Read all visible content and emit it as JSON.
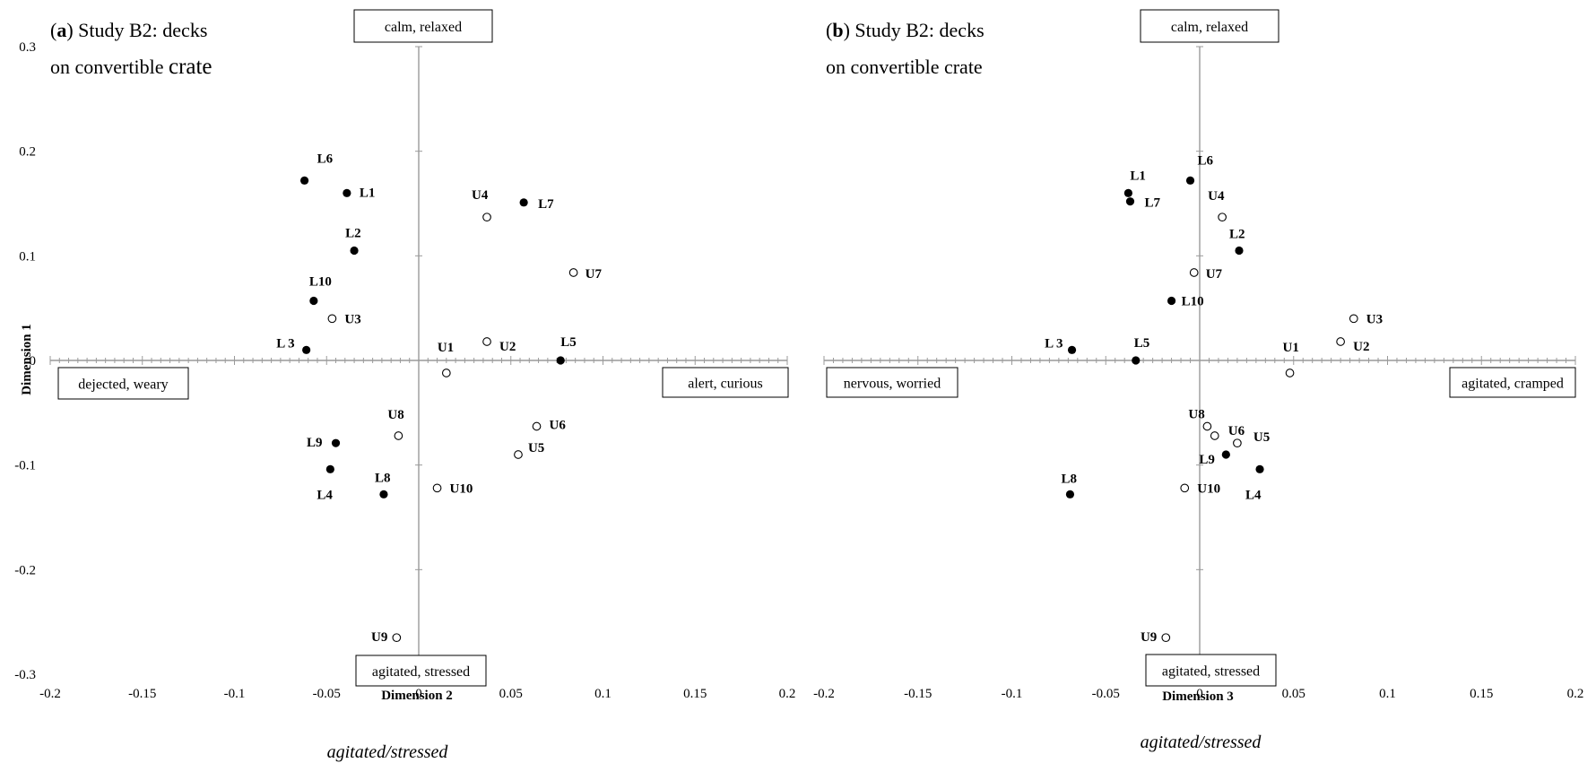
{
  "dimension1_label": "Dimension 1",
  "chart_data": [
    {
      "type": "scatter",
      "panel_letter": "a",
      "title_rest": ") Study B2: decks",
      "title_line2_prefix": "on convertible ",
      "title_line2_word": "crate",
      "xlabel": "Dimension 2",
      "caption": "agitated/stressed",
      "xlim": [
        -0.2,
        0.2
      ],
      "ylim": [
        -0.3,
        0.3
      ],
      "xticks": [
        "-0.2",
        "-0.15",
        "-0.1",
        "-0.05",
        "0",
        "0.05",
        "0.1",
        "0.15",
        "0.2"
      ],
      "yticks": [
        "0.3",
        "0.2",
        "0.1",
        "0",
        "-0.1",
        "-0.2",
        "-0.3"
      ],
      "corner_labels": {
        "top": "calm, relaxed",
        "bottom": "agitated, stressed",
        "left": "dejected, weary",
        "right": "alert, curious"
      },
      "series": [
        {
          "marker": "filled",
          "points": [
            {
              "label": "L6",
              "x": -0.062,
              "y": 0.172
            },
            {
              "label": "L1",
              "x": -0.039,
              "y": 0.16
            },
            {
              "label": "L2",
              "x": -0.035,
              "y": 0.105
            },
            {
              "label": "L10",
              "x": -0.057,
              "y": 0.057
            },
            {
              "label": "L 3",
              "x": -0.061,
              "y": 0.01
            },
            {
              "label": "L7",
              "x": 0.057,
              "y": 0.151
            },
            {
              "label": "L5",
              "x": 0.077,
              "y": 0.0
            },
            {
              "label": "L9",
              "x": -0.045,
              "y": -0.079
            },
            {
              "label": "L4",
              "x": -0.048,
              "y": -0.104
            },
            {
              "label": "L8",
              "x": -0.019,
              "y": -0.128
            }
          ]
        },
        {
          "marker": "open",
          "points": [
            {
              "label": "U4",
              "x": 0.037,
              "y": 0.137
            },
            {
              "label": "U7",
              "x": 0.084,
              "y": 0.084
            },
            {
              "label": "U3",
              "x": -0.047,
              "y": 0.04
            },
            {
              "label": "U2",
              "x": 0.037,
              "y": 0.018
            },
            {
              "label": "U1",
              "x": 0.015,
              "y": -0.012
            },
            {
              "label": "U8",
              "x": -0.011,
              "y": -0.072
            },
            {
              "label": "U6",
              "x": 0.064,
              "y": -0.063
            },
            {
              "label": "U5",
              "x": 0.054,
              "y": -0.09
            },
            {
              "label": "U10",
              "x": 0.01,
              "y": -0.122
            },
            {
              "label": "U9",
              "x": -0.012,
              "y": -0.265
            }
          ]
        }
      ]
    },
    {
      "type": "scatter",
      "panel_letter": "b",
      "title_rest": ") Study B2: decks",
      "title_line2_prefix": "on convertible crate",
      "title_line2_word": "",
      "xlabel": "Dimension 3",
      "caption": "agitated/stressed",
      "xlim": [
        -0.2,
        0.2
      ],
      "ylim": [
        -0.3,
        0.3
      ],
      "xticks": [
        "-0.2",
        "-0.15",
        "-0.1",
        "-0.05",
        "0",
        "0.05",
        "0.1",
        "0.15",
        "0.2"
      ],
      "yticks": [],
      "corner_labels": {
        "top": "calm, relaxed",
        "bottom": "agitated, stressed",
        "left": "nervous, worried",
        "right": "agitated, cramped"
      },
      "series": [
        {
          "marker": "filled",
          "points": [
            {
              "label": "L1",
              "x": -0.038,
              "y": 0.16
            },
            {
              "label": "L7",
              "x": -0.037,
              "y": 0.152
            },
            {
              "label": "L6",
              "x": -0.005,
              "y": 0.172
            },
            {
              "label": "L2",
              "x": 0.021,
              "y": 0.105
            },
            {
              "label": "L10",
              "x": -0.015,
              "y": 0.057
            },
            {
              "label": "L 3",
              "x": -0.068,
              "y": 0.01
            },
            {
              "label": "L5",
              "x": -0.034,
              "y": 0.0
            },
            {
              "label": "L9",
              "x": 0.014,
              "y": -0.09
            },
            {
              "label": "L4",
              "x": 0.032,
              "y": -0.104
            },
            {
              "label": "L8",
              "x": -0.069,
              "y": -0.128
            }
          ]
        },
        {
          "marker": "open",
          "points": [
            {
              "label": "U4",
              "x": 0.012,
              "y": 0.137
            },
            {
              "label": "U7",
              "x": -0.003,
              "y": 0.084
            },
            {
              "label": "U3",
              "x": 0.082,
              "y": 0.04
            },
            {
              "label": "U2",
              "x": 0.075,
              "y": 0.018
            },
            {
              "label": "U1",
              "x": 0.048,
              "y": -0.012
            },
            {
              "label": "U8",
              "x": 0.004,
              "y": -0.063
            },
            {
              "label": "U6",
              "x": 0.008,
              "y": -0.072
            },
            {
              "label": "U5",
              "x": 0.02,
              "y": -0.079
            },
            {
              "label": "U10",
              "x": -0.008,
              "y": -0.122
            },
            {
              "label": "U9",
              "x": -0.018,
              "y": -0.265
            }
          ]
        }
      ]
    }
  ]
}
